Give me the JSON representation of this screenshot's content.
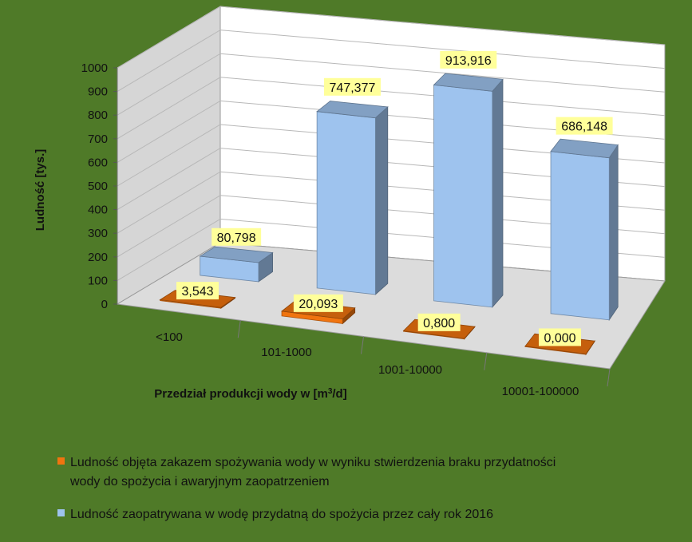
{
  "colors": {
    "background": "#4f7a28",
    "wall": "#ffffff",
    "side_wall": "#d6d6d6",
    "floor": "#dcdcdc",
    "gridline": "#b8b8b8",
    "series_orange": "#f0740f",
    "series_blue": "#9ec3ee",
    "label_bg": "#ffff9a",
    "text": "#111111"
  },
  "chart_data": {
    "type": "bar",
    "style": "3d-column",
    "title": "",
    "ylabel": "Ludność [tys.]",
    "xlabel": "Przedział produkcji wody w [m³/d]",
    "xlabel_parts": {
      "main": "Przedział produkcji wody w [m",
      "sup": "3",
      "tail": "/d]"
    },
    "ylim": [
      0,
      1000
    ],
    "yticks": [
      "0",
      "100",
      "200",
      "300",
      "400",
      "500",
      "600",
      "700",
      "800",
      "900",
      "1000"
    ],
    "grid": true,
    "legend_position": "bottom",
    "categories": [
      "<100",
      "101-1000",
      "1001-10000",
      "10001-100000"
    ],
    "series": [
      {
        "name": "Ludność objęta zakazem spożywania wody w wyniku stwierdzenia braku przydatności wody do spożycia i awaryjnym zaopatrzeniem",
        "legend_lines": [
          "Ludność objęta zakazem spożywania wody w wyniku stwierdzenia braku przydatności",
          "wody do spożycia i awaryjnym zaopatrzeniem"
        ],
        "color": "#f0740f",
        "values": [
          3.543,
          20.093,
          0.8,
          0.0
        ],
        "labels": [
          "3,543",
          "20,093",
          "0,800",
          "0,000"
        ]
      },
      {
        "name": "Ludność zaopatrywana w wodę przydatną do spożycia przez cały rok 2016",
        "legend_lines": [
          "Ludność zaopatrywana w wodę przydatną do spożycia przez cały rok 2016"
        ],
        "color": "#9ec3ee",
        "values": [
          80.798,
          747.377,
          913.916,
          686.148
        ],
        "labels": [
          "80,798",
          "747,377",
          "913,916",
          "686,148"
        ]
      }
    ]
  }
}
